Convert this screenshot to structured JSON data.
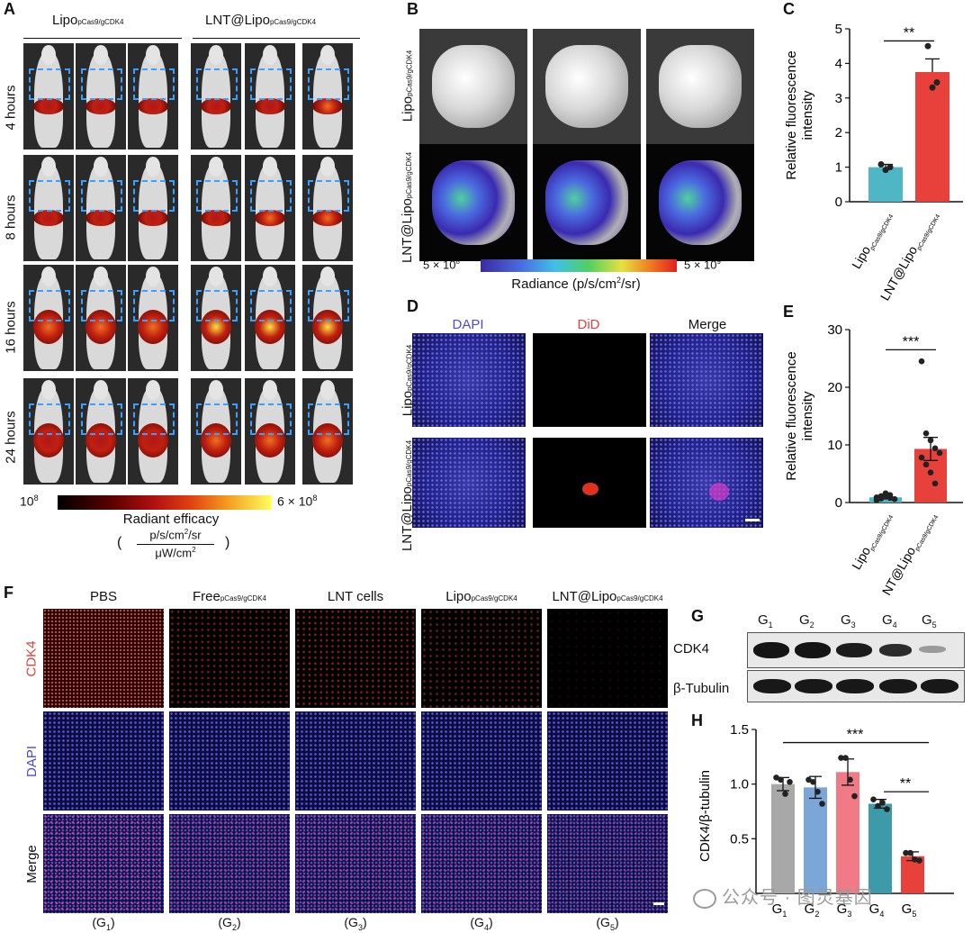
{
  "panels": {
    "A": "A",
    "B": "B",
    "C": "C",
    "D": "D",
    "E": "E",
    "F": "F",
    "G": "G",
    "H": "H"
  },
  "panelA": {
    "groups": [
      {
        "main": "Lipo",
        "sub": "pCas9/gCDK4"
      },
      {
        "main": "LNT@Lipo",
        "sub": "pCas9/gCDK4"
      }
    ],
    "rows": [
      "4 hours",
      "8 hours",
      "16 hours",
      "24 hours"
    ],
    "colorbar": {
      "min_base": "10",
      "min_exp": "8",
      "max": "6 × 10",
      "max_exp": "8",
      "title": "Radiant efficacy",
      "open": "(",
      "close": ")",
      "num": "p/s/cm",
      "num_sup": "2",
      "num_tail": "/sr",
      "den": "μW/cm",
      "den_sup": "2"
    }
  },
  "panelB": {
    "row_labels": [
      {
        "main": "Lipo",
        "sub": "pCas9/gCDK4"
      },
      {
        "main": "LNT@Lipo",
        "sub": "pCas9/gCDK4"
      }
    ],
    "colorbar": {
      "min": "5 × 10",
      "min_exp": "8",
      "max": "5 × 10",
      "max_exp": "9",
      "label": "Radiance (p/s/cm",
      "label_sup": "2",
      "label_tail": "/sr)"
    }
  },
  "panelD": {
    "columns": [
      {
        "label": "DAPI",
        "color": "#4a4ad8"
      },
      {
        "label": "DiD",
        "color": "#e0403a"
      },
      {
        "label": "Merge",
        "color": "#111111"
      }
    ],
    "row_labels": [
      {
        "main": "Lipo",
        "sub": "pCas9/gCDK4"
      },
      {
        "main": "LNT@Lipo",
        "sub": "pCas9/gCDK4"
      }
    ]
  },
  "panelF": {
    "columns": [
      {
        "main": "PBS",
        "sub": "",
        "group": "(G",
        "gsub": "1",
        "gclose": ")"
      },
      {
        "main": "Free",
        "sub": "pCas9/gCDK4",
        "group": "(G",
        "gsub": "2",
        "gclose": ")"
      },
      {
        "main": "LNT cells",
        "sub": "",
        "group": "(G",
        "gsub": "3",
        "gclose": ")"
      },
      {
        "main": "Lipo",
        "sub": "pCas9/gCDK4",
        "group": "(G",
        "gsub": "4",
        "gclose": ")"
      },
      {
        "main": "LNT@Lipo",
        "sub": "pCas9/gCDK4",
        "group": "(G",
        "gsub": "5",
        "gclose": ")"
      }
    ],
    "rows": [
      {
        "label": "CDK4",
        "color": "#e0403a"
      },
      {
        "label": "DAPI",
        "color": "#4a4ad8"
      },
      {
        "label": "Merge",
        "color": "#111111"
      }
    ]
  },
  "panelG": {
    "lanes": [
      {
        "g": "G",
        "s": "1"
      },
      {
        "g": "G",
        "s": "2"
      },
      {
        "g": "G",
        "s": "3"
      },
      {
        "g": "G",
        "s": "4"
      },
      {
        "g": "G",
        "s": "5"
      }
    ],
    "bands": [
      "CDK4",
      "β-Tubulin"
    ]
  },
  "watermark": "公众号 · 图灵基因",
  "chart_data": [
    {
      "panel": "C",
      "type": "bar",
      "categories": [
        {
          "main": "Lipo",
          "sub": "pCas9/gCDK4"
        },
        {
          "main": "LNT@Lipo",
          "sub": "pCas9/gCDK4"
        }
      ],
      "values": [
        1.0,
        3.75
      ],
      "errors": [
        0.08,
        0.38
      ],
      "points": [
        [
          1.08,
          0.92,
          1.0
        ],
        [
          4.5,
          3.3,
          3.45
        ]
      ],
      "colors": [
        "#4fb6c6",
        "#e8413c"
      ],
      "ylabel": "Relative fluorescence intensity",
      "ylim": [
        0,
        5
      ],
      "yticks": [
        0,
        1,
        2,
        3,
        4,
        5
      ],
      "significance": "**"
    },
    {
      "panel": "E",
      "type": "scatter",
      "categories": [
        {
          "main": "Lipo",
          "sub": "pCas9/gCDK4"
        },
        {
          "main": "LNT@Lipo",
          "sub": "pCas9/gCDK4"
        }
      ],
      "values": [
        0.9,
        9.3
      ],
      "errors": [
        0.2,
        2.0
      ],
      "points": [
        [
          0.4,
          0.7,
          1.0,
          1.3,
          0.6,
          0.9,
          1.1,
          1.6,
          0.8
        ],
        [
          24.5,
          12.0,
          10.8,
          9.4,
          8.6,
          7.8,
          6.6,
          5.2,
          3.3
        ]
      ],
      "colors": [
        "#4fb6c6",
        "#e8413c"
      ],
      "ylabel": "Relative fluorescence intensity",
      "ylim": [
        0,
        30
      ],
      "yticks": [
        0,
        10,
        20,
        30
      ],
      "significance": "***"
    },
    {
      "panel": "H",
      "type": "bar",
      "categories": [
        {
          "g": "G",
          "s": "1"
        },
        {
          "g": "G",
          "s": "2"
        },
        {
          "g": "G",
          "s": "3"
        },
        {
          "g": "G",
          "s": "4"
        },
        {
          "g": "G",
          "s": "5"
        }
      ],
      "values": [
        1.0,
        0.97,
        1.11,
        0.82,
        0.34
      ],
      "errors": [
        0.06,
        0.1,
        0.12,
        0.04,
        0.04
      ],
      "points": [
        [
          1.06,
          1.04,
          0.91,
          1.02
        ],
        [
          1.04,
          1.02,
          0.93,
          0.82
        ],
        [
          1.24,
          1.24,
          1.04,
          0.89
        ],
        [
          0.86,
          0.8,
          0.83,
          0.77
        ],
        [
          0.37,
          0.37,
          0.31,
          0.3
        ]
      ],
      "colors": [
        "#a8a8a8",
        "#7aa6d8",
        "#f07a86",
        "#3d9aa8",
        "#e8413c"
      ],
      "ylabel": "CDK4/β-tubulin",
      "ylim": [
        0,
        1.5
      ],
      "yticks": [
        0.5,
        1.0,
        1.5
      ],
      "significance": [
        "***",
        "**"
      ]
    }
  ]
}
